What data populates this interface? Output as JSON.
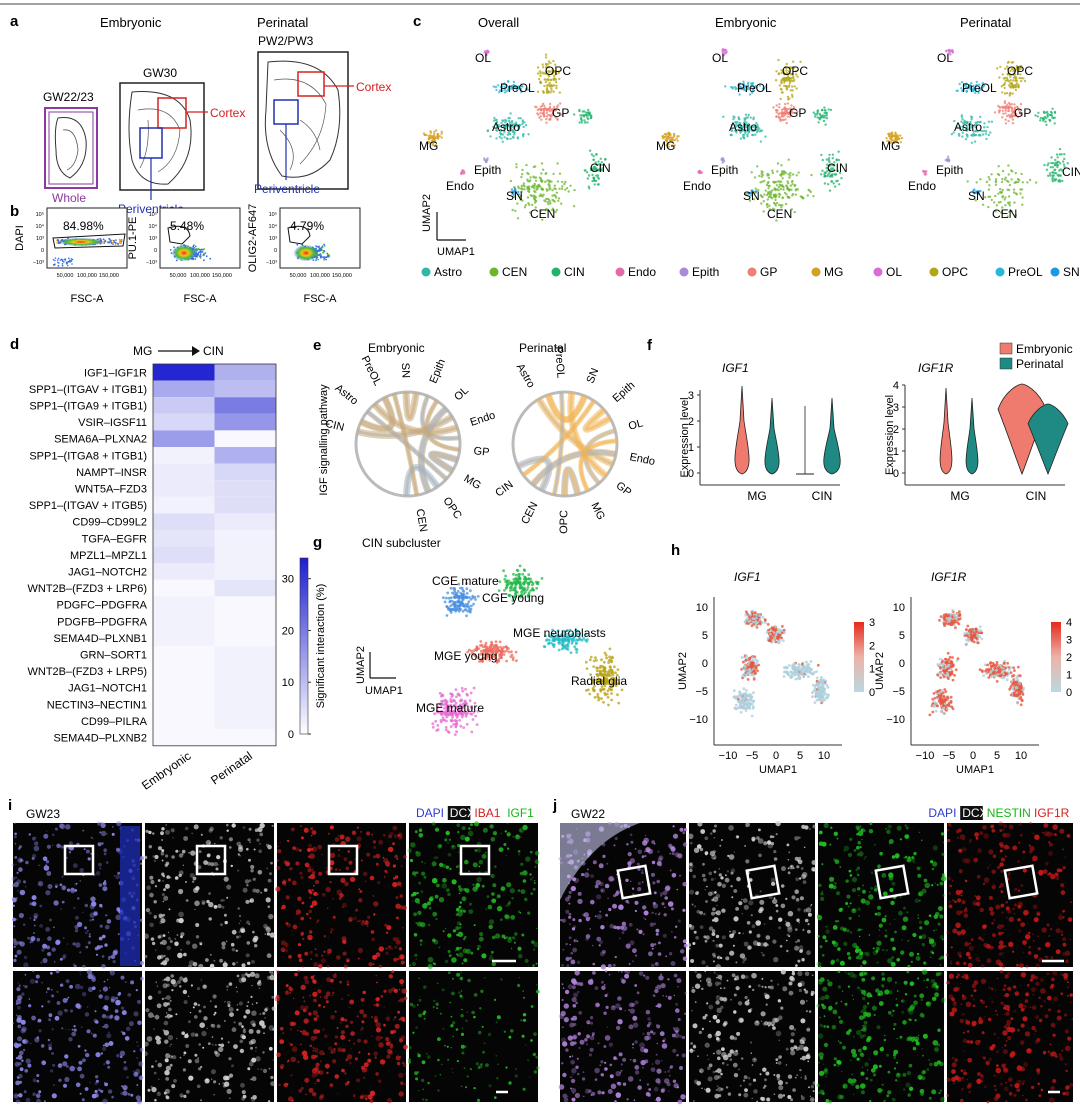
{
  "panels": {
    "a": {
      "letter": "a",
      "headers": [
        "Embryonic",
        "Perinatal"
      ],
      "samples": [
        "GW22/23",
        "GW30",
        "PW2/PW3"
      ],
      "labels": {
        "whole": "Whole",
        "cortex": "Cortex",
        "periventricle": "Periventricle"
      }
    },
    "b": {
      "letter": "b",
      "plots": [
        {
          "ylabel": "DAPI",
          "xlabel": "FSC-A",
          "percent": "84.98%"
        },
        {
          "ylabel": "PU.1-PE",
          "xlabel": "FSC-A",
          "percent": "5.48%"
        },
        {
          "ylabel": "OLIG2-AF647",
          "xlabel": "FSC-A",
          "percent": "4.79%"
        }
      ],
      "xticks": [
        "50,000",
        "100,000",
        "150,000"
      ],
      "yticks": [
        "10⁵",
        "10⁴",
        "10³",
        "0",
        "−10³"
      ]
    },
    "c": {
      "letter": "c",
      "titles": [
        "Overall",
        "Embryonic",
        "Perinatal"
      ],
      "axis": {
        "x": "UMAP1",
        "y": "UMAP2"
      },
      "clusters": [
        {
          "name": "Astro",
          "color": "#2fb8a8"
        },
        {
          "name": "CEN",
          "color": "#6cb52d"
        },
        {
          "name": "CIN",
          "color": "#1fb36b"
        },
        {
          "name": "Endo",
          "color": "#e66aa8"
        },
        {
          "name": "Epith",
          "color": "#a78ad8"
        },
        {
          "name": "GP",
          "color": "#ef7d74"
        },
        {
          "name": "MG",
          "color": "#d4a020"
        },
        {
          "name": "OL",
          "color": "#d96bd9"
        },
        {
          "name": "OPC",
          "color": "#b5a514"
        },
        {
          "name": "PreOL",
          "color": "#2ab6d4"
        },
        {
          "name": "SN",
          "color": "#1e96e0"
        }
      ]
    },
    "d": {
      "letter": "d",
      "title_from": "MG",
      "title_to": "CIN",
      "columns": [
        "Embryonic",
        "Perinatal"
      ],
      "rows": [
        "IGF1–IGF1R",
        "SPP1–(ITGAV + ITGB1)",
        "SPP1–(ITGA9 + ITGB1)",
        "VSIR–IGSF11",
        "SEMA6A–PLXNA2",
        "SPP1–(ITGA8 + ITGB1)",
        "NAMPT–INSR",
        "WNT5A–FZD3",
        "SPP1–(ITGAV + ITGB5)",
        "CD99–CD99L2",
        "TGFA–EGFR",
        "MPZL1–MPZL1",
        "JAG1–NOTCH2",
        "WNT2B–(FZD3 + LRP6)",
        "PDGFC–PDGFRA",
        "PDGFB–PDGFRA",
        "SEMA4D–PLXNB1",
        "GRN–SORT1",
        "WNT2B–(FZD3 + LRP5)",
        "JAG1–NOTCH1",
        "NECTIN3–NECTIN1",
        "CD99–PILRA",
        "SEMA4D–PLXNB2"
      ],
      "values": [
        [
          33,
          12
        ],
        [
          13,
          10
        ],
        [
          8,
          20
        ],
        [
          6,
          16
        ],
        [
          15,
          1
        ],
        [
          2,
          12
        ],
        [
          3,
          6
        ],
        [
          3,
          5
        ],
        [
          2,
          5
        ],
        [
          5,
          3
        ],
        [
          4,
          2
        ],
        [
          5,
          2
        ],
        [
          3,
          2
        ],
        [
          1,
          4
        ],
        [
          2,
          1
        ],
        [
          2,
          1
        ],
        [
          2,
          1
        ],
        [
          1,
          2
        ],
        [
          1,
          2
        ],
        [
          1,
          2
        ],
        [
          1,
          2
        ],
        [
          1,
          2
        ],
        [
          1,
          1
        ]
      ],
      "colorbar": {
        "label": "Significant interaction (%)",
        "ticks": [
          "0",
          "10",
          "20",
          "30"
        ],
        "min": 0,
        "max": 34
      }
    },
    "e": {
      "letter": "e",
      "titles": [
        "Embryonic",
        "Perinatal"
      ],
      "ylabel": "IGF signalling pathway",
      "emb_labels": [
        "CIN",
        "Astro",
        "PreOL",
        "SN",
        "Epith",
        "OL",
        "Endo",
        "GP",
        "MG",
        "OPC",
        "CEN"
      ],
      "peri_labels": [
        "Astro",
        "PreOL",
        "SN",
        "Epith",
        "OL",
        "Endo",
        "GP",
        "MG",
        "OPC",
        "CEN",
        "CIN"
      ]
    },
    "f": {
      "letter": "f",
      "genes": [
        "IGF1",
        "IGF1R"
      ],
      "ylabel": "Expression level",
      "groups": [
        "MG",
        "CIN"
      ],
      "legend": [
        {
          "name": "Embryonic",
          "color": "#ef7a6e"
        },
        {
          "name": "Perinatal",
          "color": "#1f8a83"
        }
      ],
      "yticks_igf1": [
        "0",
        "1",
        "2",
        "3"
      ],
      "yticks_igf1r": [
        "0",
        "1",
        "2",
        "3",
        "4"
      ]
    },
    "g": {
      "letter": "g",
      "title": "CIN subcluster",
      "axis": {
        "x": "UMAP1",
        "y": "UMAP2"
      },
      "subclusters": [
        {
          "name": "CGE mature",
          "color": "#4a8fe0"
        },
        {
          "name": "CGE young",
          "color": "#22b84a"
        },
        {
          "name": "MGE neuroblasts",
          "color": "#22bcc8"
        },
        {
          "name": "MGE young",
          "color": "#ee6b5e"
        },
        {
          "name": "Radial glia",
          "color": "#b8a114"
        },
        {
          "name": "MGE mature",
          "color": "#e66ad0"
        }
      ]
    },
    "h": {
      "letter": "h",
      "genes": [
        "IGF1",
        "IGF1R"
      ],
      "axis": {
        "x": "UMAP1",
        "y": "UMAP2"
      },
      "xticks": [
        "−10",
        "−5",
        "0",
        "5",
        "10"
      ],
      "yticks": [
        "10",
        "5",
        "0",
        "−5",
        "−10"
      ],
      "cbar_igf1": [
        "3",
        "2",
        "1",
        "0"
      ],
      "cbar_igf1r": [
        "4",
        "3",
        "2",
        "1",
        "0"
      ]
    },
    "i": {
      "letter": "i",
      "sample": "GW23",
      "stains": [
        {
          "name": "DAPI",
          "color": "#2b3bd6"
        },
        {
          "name": "DCX",
          "color": "#000"
        },
        {
          "name": "IBA1",
          "color": "#d62020"
        },
        {
          "name": "IGF1",
          "color": "#18b418"
        }
      ]
    },
    "j": {
      "letter": "j",
      "sample": "GW22",
      "stains": [
        {
          "name": "DAPI",
          "color": "#2b3bd6"
        },
        {
          "name": "DCX",
          "color": "#000"
        },
        {
          "name": "NESTIN",
          "color": "#18b418"
        },
        {
          "name": "IGF1R",
          "color": "#d62020"
        }
      ]
    }
  }
}
